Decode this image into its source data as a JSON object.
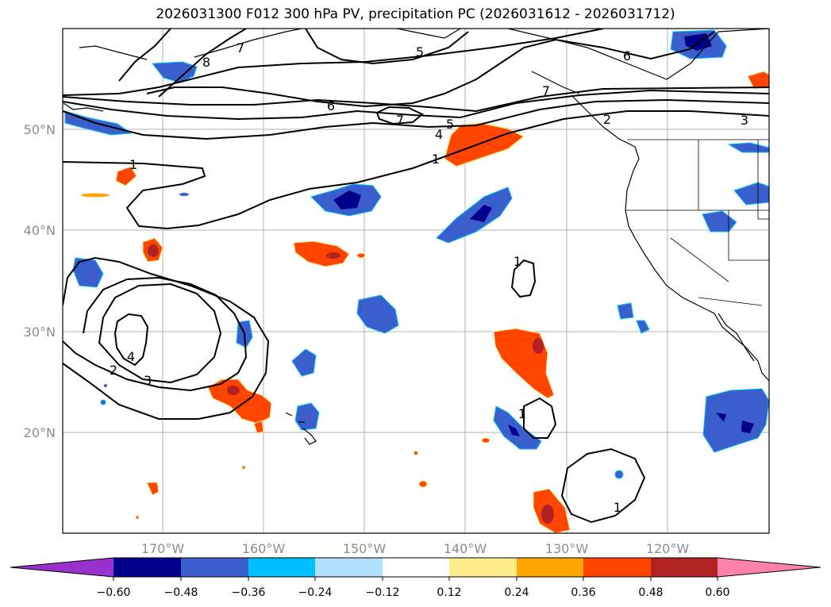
{
  "title": "2026031300 F012 300 hPa PV, precipitation PC (2026031612 - 2026031712)",
  "map": {
    "lon_labels": [
      "170°W",
      "160°W",
      "150°W",
      "140°W",
      "130°W",
      "120°W"
    ],
    "lat_labels": [
      "50°N",
      "40°N",
      "30°N",
      "20°N"
    ],
    "gridline_color": "#b0b0b0"
  },
  "pv_contour_labels": [
    "1",
    "1",
    "1",
    "1",
    "1",
    "2",
    "2",
    "3",
    "3",
    "4",
    "4",
    "5",
    "5",
    "6",
    "6",
    "7",
    "7",
    "7",
    "8"
  ],
  "colorbar": {
    "ticks": [
      "−0.60",
      "−0.48",
      "−0.36",
      "−0.24",
      "−0.12",
      "0.12",
      "0.24",
      "0.36",
      "0.48",
      "0.60"
    ],
    "colors": [
      "#9932cc",
      "#00008b",
      "#3a5fcd",
      "#00bfff",
      "#b0e2ff",
      "#ffffff",
      "#ffec8b",
      "#ffa500",
      "#ff4500",
      "#b22222",
      "#ff82ab"
    ]
  }
}
